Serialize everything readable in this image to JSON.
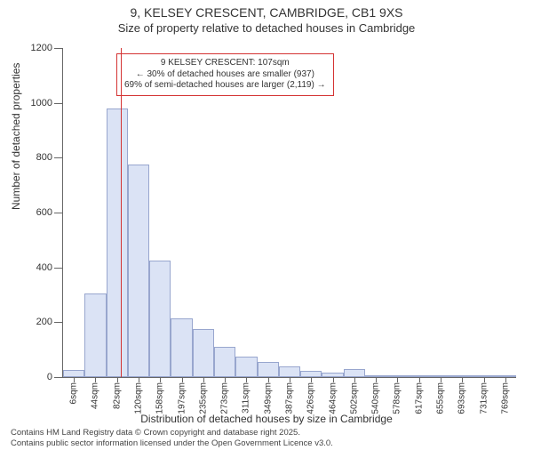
{
  "title_line1": "9, KELSEY CRESCENT, CAMBRIDGE, CB1 9XS",
  "title_line2": "Size of property relative to detached houses in Cambridge",
  "ylabel": "Number of detached properties",
  "xlabel": "Distribution of detached houses by size in Cambridge",
  "footer_line1": "Contains HM Land Registry data © Crown copyright and database right 2025.",
  "footer_line2": "Contains public sector information licensed under the Open Government Licence v3.0.",
  "chart": {
    "type": "histogram",
    "background_color": "#ffffff",
    "bar_fill": "#dbe3f5",
    "bar_border": "rgba(70,90,160,0.45)",
    "axis_color": "#666666",
    "text_color": "#333333",
    "ylim": [
      0,
      1200
    ],
    "yticks": [
      0,
      200,
      400,
      600,
      800,
      1000,
      1200
    ],
    "xtick_labels": [
      "6sqm",
      "44sqm",
      "82sqm",
      "120sqm",
      "158sqm",
      "197sqm",
      "235sqm",
      "273sqm",
      "311sqm",
      "349sqm",
      "387sqm",
      "426sqm",
      "464sqm",
      "502sqm",
      "540sqm",
      "578sqm",
      "617sqm",
      "655sqm",
      "693sqm",
      "731sqm",
      "769sqm"
    ],
    "values": [
      25,
      305,
      980,
      775,
      425,
      215,
      175,
      110,
      75,
      55,
      38,
      22,
      15,
      28,
      8,
      3,
      2,
      1,
      3,
      1,
      2
    ],
    "marker": {
      "value_sqm": 107,
      "color": "#d43333",
      "line_width": 1.5
    },
    "callout": {
      "border_color": "#d43333",
      "lines": [
        "9 KELSEY CRESCENT: 107sqm",
        "← 30% of detached houses are smaller (937)",
        "69% of semi-detached houses are larger (2,119) →"
      ],
      "fontsize": 10
    },
    "fontsize_title": 14,
    "fontsize_subtitle": 13,
    "fontsize_label": 12,
    "fontsize_tick": 11,
    "fontsize_xtick": 10
  }
}
